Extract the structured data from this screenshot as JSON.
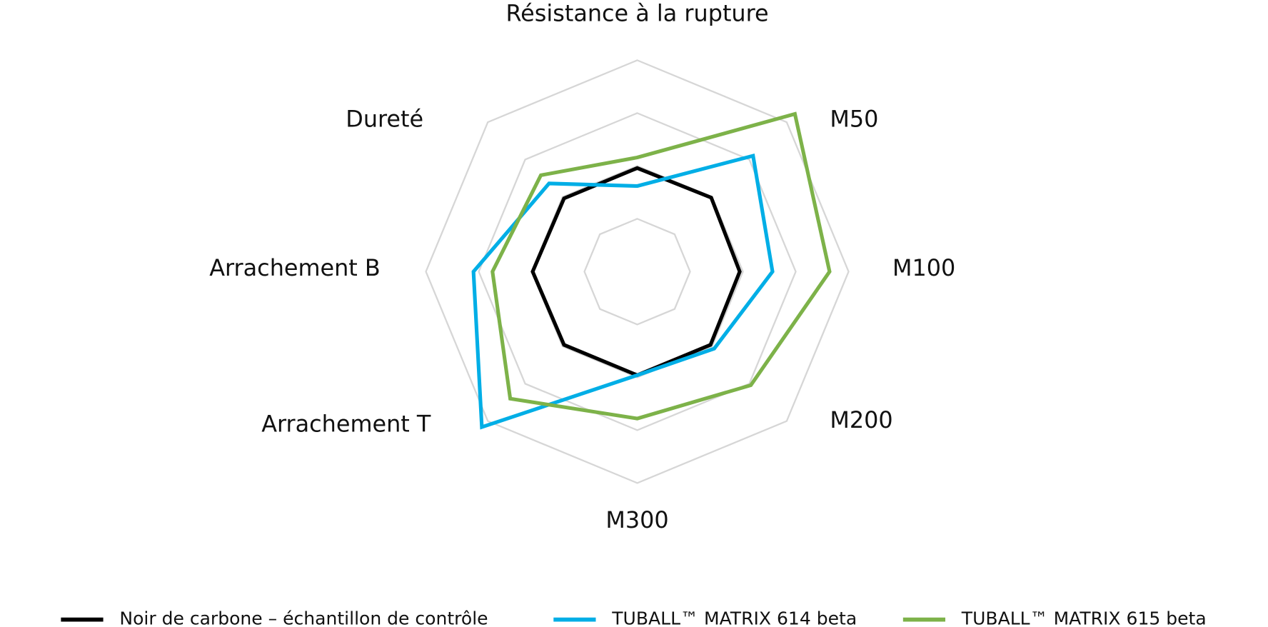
{
  "chart_data": {
    "type": "radar",
    "categories": [
      "Résistance à la rupture",
      "M50",
      "M100",
      "M200",
      "M300",
      "Arrachement T",
      "Arrachement B",
      "Dureté"
    ],
    "rlim": [
      0,
      2
    ],
    "rticks": [
      0.5,
      1,
      1.5,
      2
    ],
    "grid": true,
    "series": [
      {
        "name": "Noir de carbone – échantillon de contrôle",
        "color": "#000000",
        "values": [
          0.98,
          0.99,
          0.97,
          0.98,
          0.98,
          0.98,
          0.99,
          0.98
        ]
      },
      {
        "name": "TUBALL™ MATRIX 614 beta",
        "color": "#00aee6",
        "values": [
          0.81,
          1.55,
          1.28,
          1.03,
          0.98,
          2.08,
          1.55,
          1.18
        ]
      },
      {
        "name": "TUBALL™ MATRIX 615 beta",
        "color": "#7db249",
        "values": [
          1.08,
          2.11,
          1.82,
          1.52,
          1.39,
          1.7,
          1.37,
          1.29
        ]
      }
    ]
  }
}
